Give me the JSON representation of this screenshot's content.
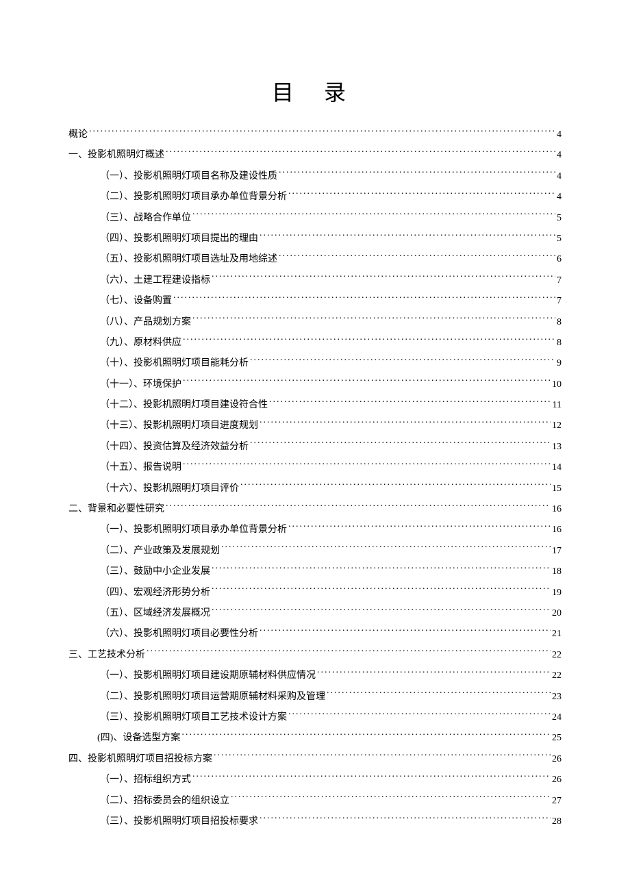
{
  "title": "目 录",
  "entries": [
    {
      "level": 0,
      "label": "概论",
      "page": "4"
    },
    {
      "level": 1,
      "label": "一、投影机照明灯概述",
      "page": "4"
    },
    {
      "level": 2,
      "label": "（一）、投影机照明灯项目名称及建设性质",
      "page": "4"
    },
    {
      "level": 2,
      "label": "（二）、投影机照明灯项目承办单位背景分析",
      "page": "4"
    },
    {
      "level": 2,
      "label": "（三）、战略合作单位",
      "page": "5"
    },
    {
      "level": 2,
      "label": "（四）、投影机照明灯项目提出的理由",
      "page": "5"
    },
    {
      "level": 2,
      "label": "（五）、投影机照明灯项目选址及用地综述",
      "page": "6"
    },
    {
      "level": 2,
      "label": "（六）、土建工程建设指标",
      "page": "7"
    },
    {
      "level": 2,
      "label": "（七）、设备购置",
      "page": "7"
    },
    {
      "level": 2,
      "label": "（八）、产品规划方案",
      "page": "8"
    },
    {
      "level": 2,
      "label": "（九）、原材料供应",
      "page": "8"
    },
    {
      "level": 2,
      "label": "（十）、投影机照明灯项目能耗分析",
      "page": "9"
    },
    {
      "level": 2,
      "label": "（十一）、环境保护",
      "page": "10"
    },
    {
      "level": 2,
      "label": "（十二）、投影机照明灯项目建设符合性",
      "page": "11"
    },
    {
      "level": 2,
      "label": "（十三）、投影机照明灯项目进度规划",
      "page": "12"
    },
    {
      "level": 2,
      "label": "（十四）、投资估算及经济效益分析",
      "page": "13"
    },
    {
      "level": 2,
      "label": "（十五）、报告说明",
      "page": "14"
    },
    {
      "level": 2,
      "label": "（十六）、投影机照明灯项目评价",
      "page": "15"
    },
    {
      "level": 1,
      "label": "二、背景和必要性研究",
      "page": "16"
    },
    {
      "level": 2,
      "label": "（一）、投影机照明灯项目承办单位背景分析",
      "page": "16"
    },
    {
      "level": 2,
      "label": "（二）、产业政策及发展规划",
      "page": "17"
    },
    {
      "level": 2,
      "label": "（三）、鼓励中小企业发展",
      "page": "18"
    },
    {
      "level": 2,
      "label": "（四）、宏观经济形势分析",
      "page": "19"
    },
    {
      "level": 2,
      "label": "（五）、区域经济发展概况",
      "page": "20"
    },
    {
      "level": 2,
      "label": "（六）、投影机照明灯项目必要性分析",
      "page": "21"
    },
    {
      "level": 1,
      "label": "三、工艺技术分析",
      "page": "22"
    },
    {
      "level": 2,
      "label": "（一）、投影机照明灯项目建设期原辅材料供应情况",
      "page": "22"
    },
    {
      "level": 2,
      "label": "（二）、投影机照明灯项目运营期原辅材料采购及管理",
      "page": "23"
    },
    {
      "level": 2,
      "label": "（三）、投影机照明灯项目工艺技术设计方案",
      "page": "24"
    },
    {
      "level": "2-alt",
      "label": "(四)、设备选型方案",
      "page": "25"
    },
    {
      "level": 1,
      "label": "四、投影机照明灯项目招投标方案",
      "page": "26"
    },
    {
      "level": 2,
      "label": "（一）、招标组织方式",
      "page": "26"
    },
    {
      "level": 2,
      "label": "（二）、招标委员会的组织设立",
      "page": "27"
    },
    {
      "level": 2,
      "label": "（三）、投影机照明灯项目招投标要求",
      "page": "28"
    }
  ]
}
